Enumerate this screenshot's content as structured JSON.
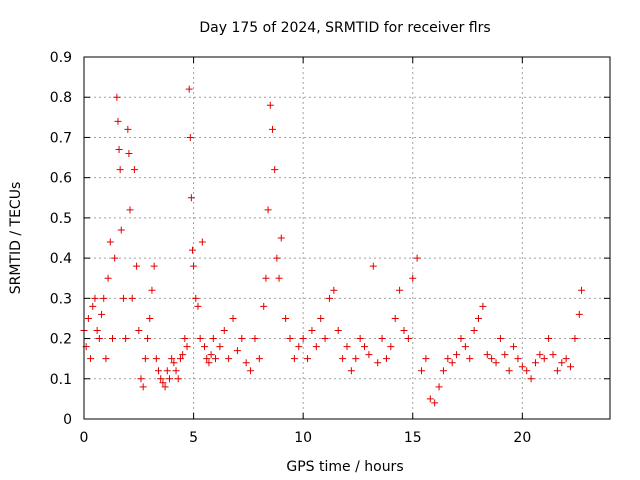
{
  "chart_data": {
    "type": "scatter",
    "title": "Day 175 of 2024, SRMTID for receiver flrs",
    "xlabel": "GPS time / hours",
    "ylabel": "SRMTID / TECUs",
    "xlim": [
      0,
      24
    ],
    "ylim": [
      0,
      0.9
    ],
    "xticks": [
      0,
      5,
      10,
      15,
      20
    ],
    "xtick_labels": [
      "0",
      "5",
      "10",
      "15",
      "20"
    ],
    "yticks": [
      0,
      0.1,
      0.2,
      0.3,
      0.4,
      0.5,
      0.6,
      0.7,
      0.8,
      0.9
    ],
    "ytick_labels": [
      "0",
      "0.1",
      "0.2",
      "0.3",
      "0.4",
      "0.5",
      "0.6",
      "0.7",
      "0.8",
      "0.9"
    ],
    "grid": true,
    "marker": "+",
    "color": "#e00000",
    "series": [
      {
        "name": "SRMTID",
        "x": [
          0.0,
          0.1,
          0.2,
          0.3,
          0.4,
          0.5,
          0.6,
          0.7,
          0.8,
          0.9,
          1.0,
          1.1,
          1.2,
          1.3,
          1.4,
          1.5,
          1.55,
          1.6,
          1.65,
          1.7,
          1.8,
          1.9,
          2.0,
          2.05,
          2.1,
          2.2,
          2.3,
          2.4,
          2.5,
          2.6,
          2.7,
          2.8,
          2.9,
          3.0,
          3.1,
          3.2,
          3.3,
          3.4,
          3.5,
          3.6,
          3.7,
          3.8,
          3.9,
          4.0,
          4.1,
          4.2,
          4.3,
          4.4,
          4.5,
          4.6,
          4.7,
          4.8,
          4.85,
          4.9,
          4.95,
          5.0,
          5.1,
          5.2,
          5.3,
          5.4,
          5.5,
          5.6,
          5.7,
          5.8,
          5.9,
          6.0,
          6.2,
          6.4,
          6.6,
          6.8,
          7.0,
          7.2,
          7.4,
          7.6,
          7.8,
          8.0,
          8.2,
          8.3,
          8.4,
          8.5,
          8.6,
          8.7,
          8.8,
          8.9,
          9.0,
          9.2,
          9.4,
          9.6,
          9.8,
          10.0,
          10.2,
          10.4,
          10.6,
          10.8,
          11.0,
          11.2,
          11.4,
          11.6,
          11.8,
          12.0,
          12.2,
          12.4,
          12.6,
          12.8,
          13.0,
          13.2,
          13.4,
          13.6,
          13.8,
          14.0,
          14.2,
          14.4,
          14.6,
          14.8,
          15.0,
          15.2,
          15.4,
          15.6,
          15.8,
          16.0,
          16.2,
          16.4,
          16.6,
          16.8,
          17.0,
          17.2,
          17.4,
          17.6,
          17.8,
          18.0,
          18.2,
          18.4,
          18.6,
          18.8,
          19.0,
          19.2,
          19.4,
          19.6,
          19.8,
          20.0,
          20.2,
          20.4,
          20.6,
          20.8,
          21.0,
          21.2,
          21.4,
          21.6,
          21.8,
          22.0,
          22.2,
          22.4,
          22.6,
          22.7
        ],
        "y": [
          0.22,
          0.18,
          0.25,
          0.15,
          0.28,
          0.3,
          0.22,
          0.2,
          0.26,
          0.3,
          0.15,
          0.35,
          0.44,
          0.2,
          0.4,
          0.8,
          0.74,
          0.67,
          0.62,
          0.47,
          0.3,
          0.2,
          0.72,
          0.66,
          0.52,
          0.3,
          0.62,
          0.38,
          0.22,
          0.1,
          0.08,
          0.15,
          0.2,
          0.25,
          0.32,
          0.38,
          0.15,
          0.12,
          0.1,
          0.09,
          0.08,
          0.12,
          0.1,
          0.15,
          0.14,
          0.12,
          0.1,
          0.15,
          0.16,
          0.2,
          0.18,
          0.82,
          0.7,
          0.55,
          0.42,
          0.38,
          0.3,
          0.28,
          0.2,
          0.44,
          0.18,
          0.15,
          0.14,
          0.16,
          0.2,
          0.15,
          0.18,
          0.22,
          0.15,
          0.25,
          0.17,
          0.2,
          0.14,
          0.12,
          0.2,
          0.15,
          0.28,
          0.35,
          0.52,
          0.78,
          0.72,
          0.62,
          0.4,
          0.35,
          0.45,
          0.25,
          0.2,
          0.15,
          0.18,
          0.2,
          0.15,
          0.22,
          0.18,
          0.25,
          0.2,
          0.3,
          0.32,
          0.22,
          0.15,
          0.18,
          0.12,
          0.15,
          0.2,
          0.18,
          0.16,
          0.38,
          0.14,
          0.2,
          0.15,
          0.18,
          0.25,
          0.32,
          0.22,
          0.2,
          0.35,
          0.4,
          0.12,
          0.15,
          0.05,
          0.04,
          0.08,
          0.12,
          0.15,
          0.14,
          0.16,
          0.2,
          0.18,
          0.15,
          0.22,
          0.25,
          0.28,
          0.16,
          0.15,
          0.14,
          0.2,
          0.16,
          0.12,
          0.18,
          0.15,
          0.13,
          0.12,
          0.1,
          0.14,
          0.16,
          0.15,
          0.2,
          0.16,
          0.12,
          0.14,
          0.15,
          0.13,
          0.2,
          0.26,
          0.32
        ]
      }
    ]
  }
}
